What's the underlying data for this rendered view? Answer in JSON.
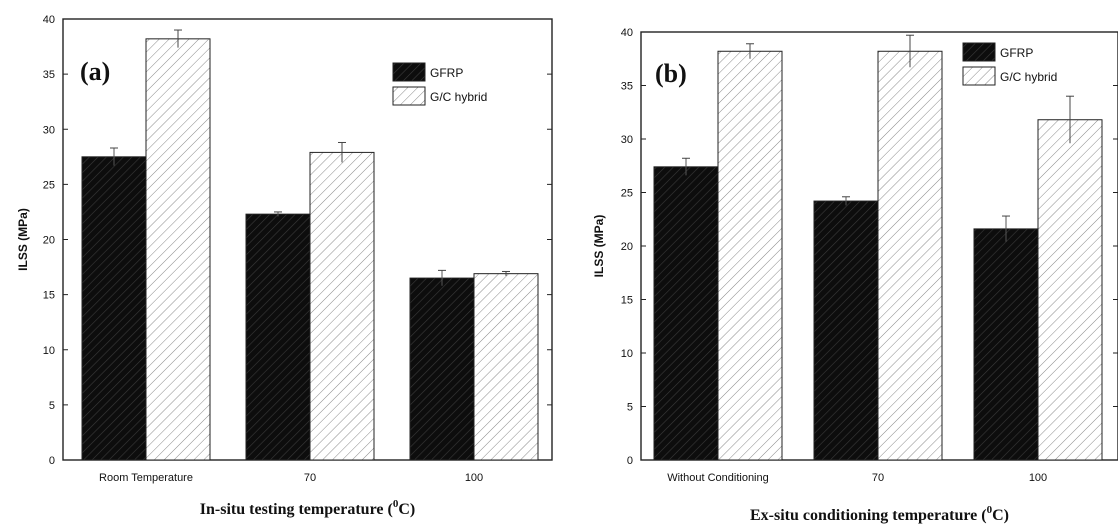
{
  "chart_data": [
    {
      "type": "bar",
      "panel_label": "(a)",
      "categories": [
        "Room Temperature",
        "70",
        "100"
      ],
      "series": [
        {
          "name": "GFRP",
          "values": [
            27.5,
            22.3,
            16.5
          ],
          "errors": [
            0.8,
            0.2,
            0.7
          ],
          "color": "#111111"
        },
        {
          "name": "G/C hybrid",
          "values": [
            38.2,
            27.9,
            16.9
          ],
          "errors": [
            0.8,
            0.9,
            0.2
          ],
          "color": "#ffffff"
        }
      ],
      "xlabel": "In-situ testing temperature (",
      "xlabel_sup": "0",
      "xlabel_end": "C)",
      "ylabel": "ILSS (MPa)",
      "ylim": [
        0,
        40
      ],
      "yticks": [
        0,
        5,
        10,
        15,
        20,
        25,
        30,
        35,
        40
      ],
      "legend_position": "top-right",
      "grid": false
    },
    {
      "type": "bar",
      "panel_label": "(b)",
      "categories": [
        "Without Conditioning",
        "70",
        "100"
      ],
      "series": [
        {
          "name": "GFRP",
          "values": [
            27.4,
            24.2,
            21.6
          ],
          "errors": [
            0.8,
            0.4,
            1.2
          ],
          "color": "#111111"
        },
        {
          "name": "G/C hybrid",
          "values": [
            38.2,
            38.2,
            31.8
          ],
          "errors": [
            0.7,
            1.5,
            2.2
          ],
          "color": "#ffffff"
        }
      ],
      "xlabel": "Ex-situ conditioning temperature (",
      "xlabel_sup": "0",
      "xlabel_end": "C)",
      "ylabel": "ILSS (MPa)",
      "ylim": [
        0,
        40
      ],
      "yticks": [
        0,
        5,
        10,
        15,
        20,
        25,
        30,
        35,
        40
      ],
      "legend_position": "top-right",
      "grid": false
    }
  ]
}
